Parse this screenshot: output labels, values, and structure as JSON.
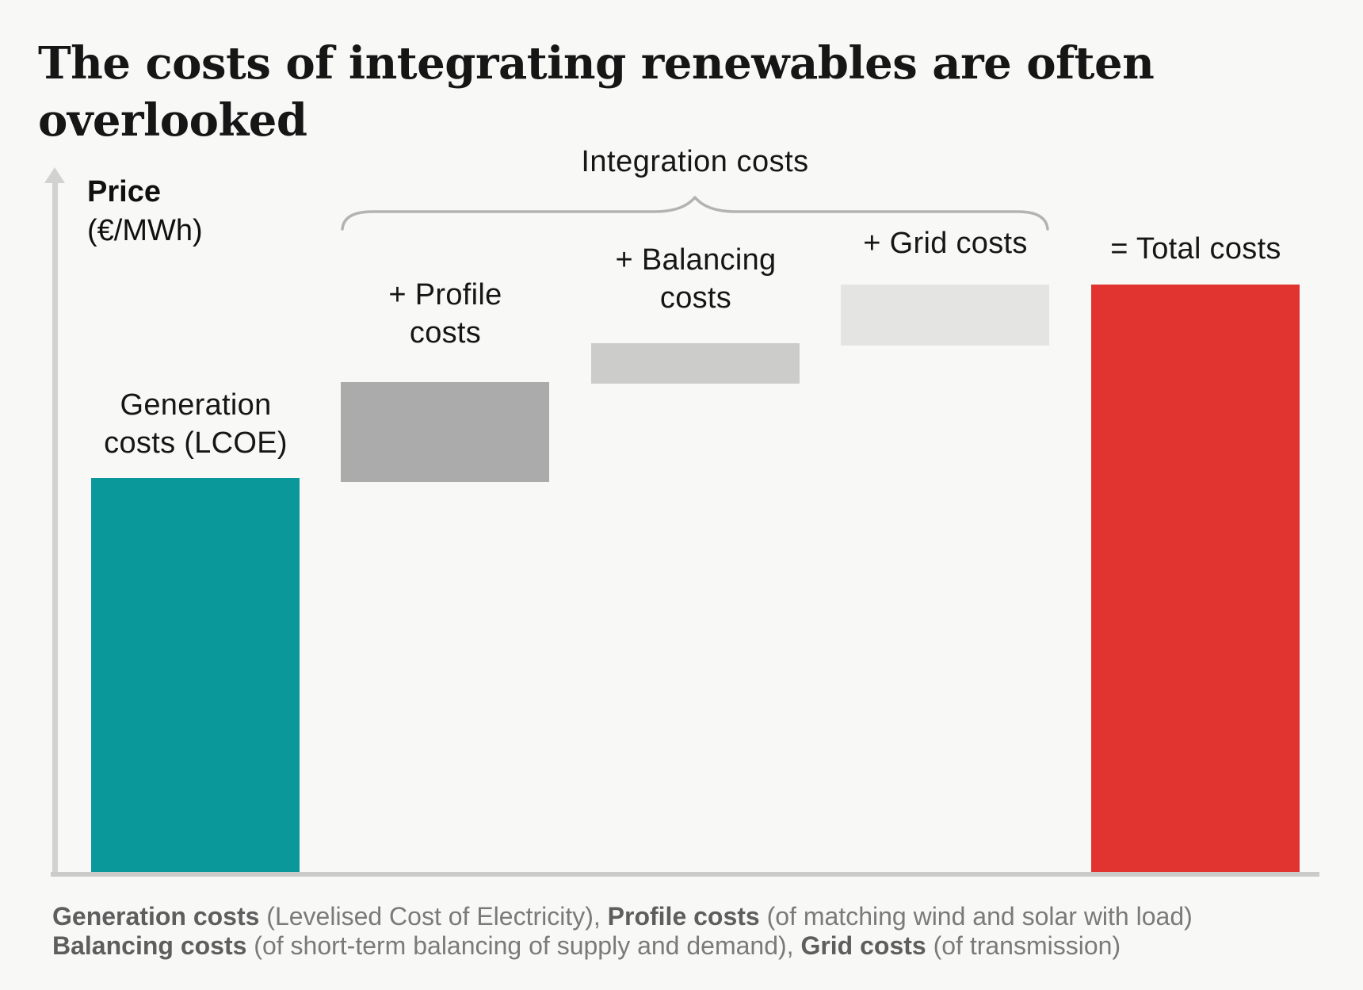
{
  "title": "The costs of integrating renewables are often overlooked",
  "axis": {
    "y_label_line1": "Price",
    "y_label_line2": "(€/MWh)",
    "y_label_display": "Price\n(€/MWh)",
    "numeric_ticks_shown": false
  },
  "brace": {
    "label": "Integration costs",
    "spans_bars": [
      "+ Profile costs",
      "+ Balancing costs",
      "+ Grid costs"
    ],
    "color": "#b3b3b2"
  },
  "chart_data": {
    "type": "bar",
    "subtype": "waterfall",
    "title": "The costs of integrating renewables are often overlooked",
    "xlabel": "",
    "ylabel": "Price (€/MWh)",
    "ylim": [
      0,
      100
    ],
    "grid": false,
    "legend": "none",
    "note": "Conceptual chart: no numeric tick values shown; values are relative, expressed as % of total costs (estimated from pixel heights).",
    "categories": [
      "Generation costs (LCOE)",
      "+ Profile costs",
      "+ Balancing costs",
      "+ Grid costs",
      "= Total costs"
    ],
    "display_labels": [
      "Generation\ncosts (LCOE)",
      "+ Profile\ncosts",
      "+ Balancing\ncosts",
      "+ Grid costs",
      "= Total costs"
    ],
    "increments_pct_of_total": [
      67,
      16,
      7,
      10,
      100
    ],
    "segments": [
      {
        "label": "Generation costs (LCOE)",
        "start": 0,
        "end": 67.1,
        "color": "#0b989b"
      },
      {
        "label": "+ Profile costs",
        "start": 66.4,
        "end": 83.4,
        "color": "#ababab"
      },
      {
        "label": "+ Balancing costs",
        "start": 83.2,
        "end": 90.0,
        "color": "#cccccb"
      },
      {
        "label": "+ Grid costs",
        "start": 89.6,
        "end": 100,
        "color": "#e4e4e3"
      },
      {
        "label": "= Total costs",
        "start": 0,
        "end": 100,
        "color": "#e1332f"
      }
    ],
    "annotation": "Integration costs (curly brace over Profile, Balancing and Grid cost bars)"
  },
  "colors": {
    "background": "#f8f8f7",
    "axis": "#d2d2d1",
    "baseline": "#cbcbca",
    "teal": "#0b989b",
    "red": "#e1332f",
    "text_dark": "#161616",
    "footnote_gray": "#7a7a7a"
  },
  "footer": {
    "lines": [
      [
        {
          "text": "Generation costs",
          "bold": true
        },
        {
          "text": " (Levelised Cost of Electricity), ",
          "bold": false
        },
        {
          "text": "Profile costs",
          "bold": true
        },
        {
          "text": " (of matching wind and solar with load)",
          "bold": false
        }
      ],
      [
        {
          "text": "Balancing costs",
          "bold": true
        },
        {
          "text": " (of short-term balancing of supply and demand), ",
          "bold": false
        },
        {
          "text": "Grid costs",
          "bold": true
        },
        {
          "text": " (of transmission)",
          "bold": false
        }
      ]
    ]
  }
}
